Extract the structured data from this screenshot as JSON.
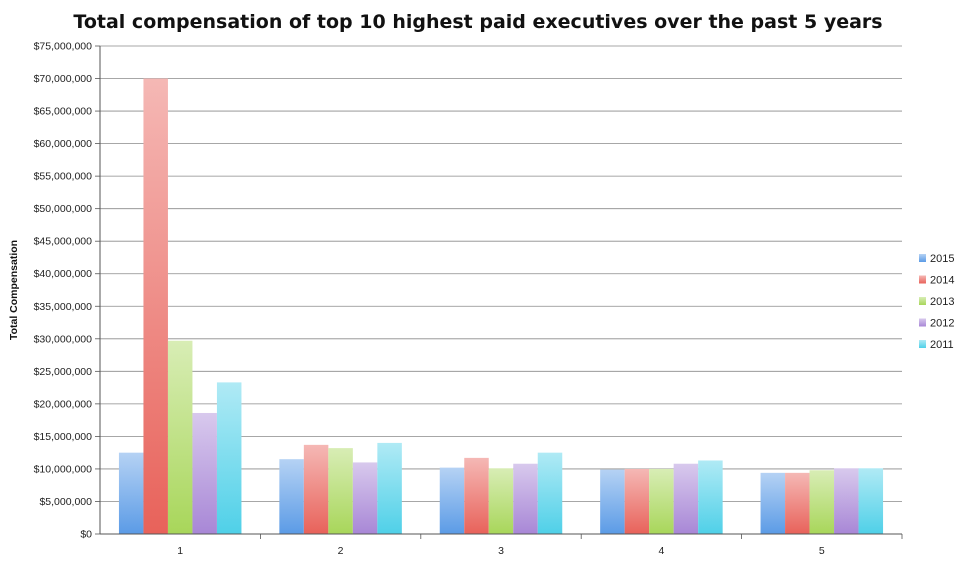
{
  "chart_data": {
    "type": "bar",
    "title": "Total compensation of top 10 highest paid executives over the past 5 years",
    "xlabel": "",
    "ylabel": "Total Compensation",
    "categories": [
      "1",
      "2",
      "3",
      "4",
      "5"
    ],
    "ylim": [
      0,
      75000000
    ],
    "yticks": [
      {
        "value": 0,
        "label": "$0"
      },
      {
        "value": 5000000,
        "label": "$5,000,000"
      },
      {
        "value": 10000000,
        "label": "$10,000,000"
      },
      {
        "value": 15000000,
        "label": "$15,000,000"
      },
      {
        "value": 20000000,
        "label": "$20,000,000"
      },
      {
        "value": 25000000,
        "label": "$25,000,000"
      },
      {
        "value": 30000000,
        "label": "$30,000,000"
      },
      {
        "value": 35000000,
        "label": "$35,000,000"
      },
      {
        "value": 40000000,
        "label": "$40,000,000"
      },
      {
        "value": 45000000,
        "label": "$45,000,000"
      },
      {
        "value": 50000000,
        "label": "$50,000,000"
      },
      {
        "value": 55000000,
        "label": "$55,000,000"
      },
      {
        "value": 60000000,
        "label": "$60,000,000"
      },
      {
        "value": 65000000,
        "label": "$65,000,000"
      },
      {
        "value": 70000000,
        "label": "$70,000,000"
      },
      {
        "value": 75000000,
        "label": "$75,000,000"
      }
    ],
    "grid": true,
    "legend": "right",
    "series": [
      {
        "name": "2015",
        "color": "#5b9be6",
        "values": [
          12500000,
          11500000,
          10200000,
          9900000,
          9400000
        ]
      },
      {
        "name": "2014",
        "color": "#e8625a",
        "values": [
          70000000,
          13700000,
          11700000,
          10000000,
          9400000
        ]
      },
      {
        "name": "2013",
        "color": "#a8d65a",
        "values": [
          29700000,
          13200000,
          10100000,
          10000000,
          9800000
        ]
      },
      {
        "name": "2012",
        "color": "#a887d6",
        "values": [
          18600000,
          11000000,
          10800000,
          10800000,
          10100000
        ]
      },
      {
        "name": "2011",
        "color": "#4fd0e8",
        "values": [
          23300000,
          14000000,
          12500000,
          11300000,
          10100000
        ]
      }
    ]
  }
}
